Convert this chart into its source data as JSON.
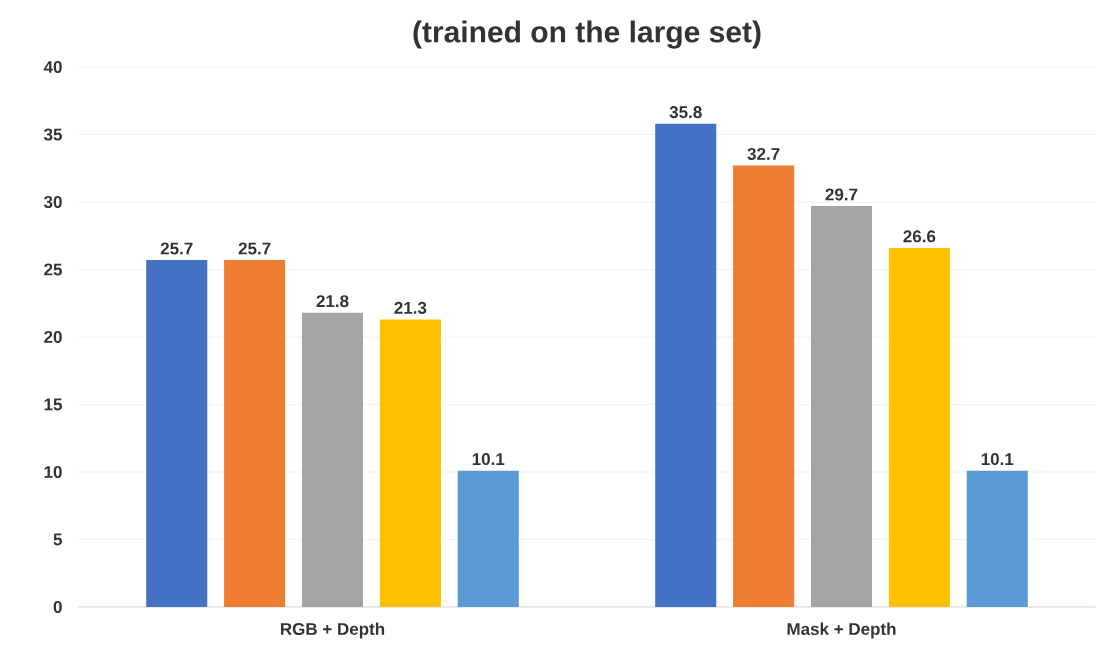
{
  "chart_data": {
    "type": "bar",
    "title": "(trained on the large set)",
    "categories": [
      "RGB + Depth",
      "Mask + Depth"
    ],
    "series": [
      {
        "color": "#4472c4",
        "values": [
          25.7,
          35.8
        ]
      },
      {
        "color": "#ed7d31",
        "values": [
          25.7,
          32.7
        ]
      },
      {
        "color": "#a5a5a5",
        "values": [
          21.8,
          29.7
        ]
      },
      {
        "color": "#ffc000",
        "values": [
          21.3,
          26.6
        ]
      },
      {
        "color": "#5b9bd5",
        "values": [
          10.1,
          10.1
        ]
      }
    ],
    "ylim": [
      0,
      40
    ],
    "yticks": [
      0,
      5,
      10,
      15,
      20,
      25,
      30,
      35,
      40
    ],
    "grid": "y",
    "data_labels": true
  }
}
